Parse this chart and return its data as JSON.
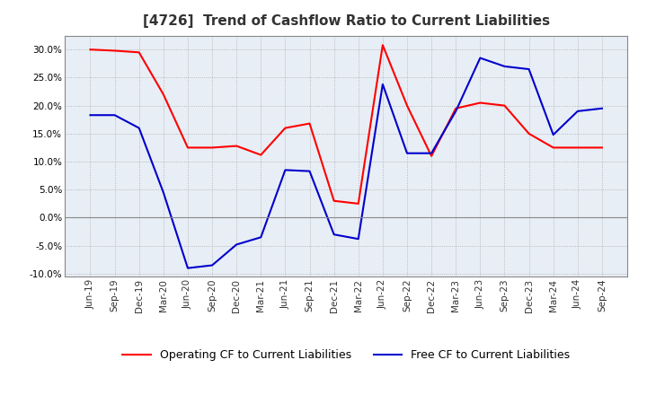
{
  "title": "[4726]  Trend of Cashflow Ratio to Current Liabilities",
  "x_labels": [
    "Jun-19",
    "Sep-19",
    "Dec-19",
    "Mar-20",
    "Jun-20",
    "Sep-20",
    "Dec-20",
    "Mar-21",
    "Jun-21",
    "Sep-21",
    "Dec-21",
    "Mar-22",
    "Jun-22",
    "Sep-22",
    "Dec-22",
    "Mar-23",
    "Jun-23",
    "Sep-23",
    "Dec-23",
    "Mar-24",
    "Jun-24",
    "Sep-24"
  ],
  "operating_cf": [
    0.3,
    0.298,
    0.295,
    0.22,
    0.125,
    0.125,
    0.128,
    0.112,
    0.16,
    0.168,
    0.03,
    0.025,
    0.308,
    0.2,
    0.11,
    0.195,
    0.205,
    0.2,
    0.15,
    0.125,
    0.125,
    0.125
  ],
  "free_cf": [
    0.183,
    0.183,
    0.16,
    0.045,
    -0.09,
    -0.085,
    -0.048,
    -0.035,
    0.085,
    0.083,
    -0.03,
    -0.038,
    0.238,
    0.115,
    0.115,
    0.19,
    0.285,
    0.27,
    0.265,
    0.148,
    0.19,
    0.195
  ],
  "ylim": [
    -0.105,
    0.325
  ],
  "yticks": [
    -0.1,
    -0.05,
    0.0,
    0.05,
    0.1,
    0.15,
    0.2,
    0.25,
    0.3
  ],
  "operating_color": "#ff0000",
  "free_color": "#0000cc",
  "plot_bg_color": "#e8eef5",
  "background_color": "#ffffff",
  "grid_color": "#aaaaaa",
  "zero_line_color": "#888888",
  "title_fontsize": 11,
  "label_fontsize": 7.5,
  "legend_fontsize": 9
}
